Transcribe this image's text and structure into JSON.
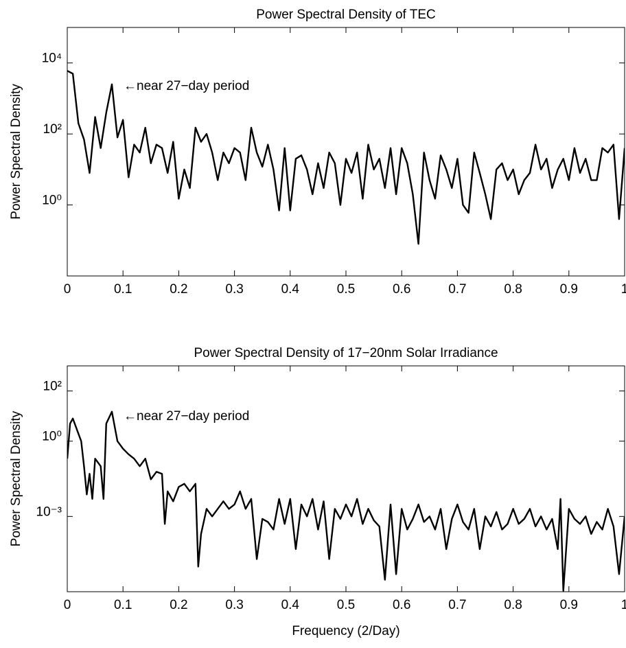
{
  "chart_data": [
    {
      "type": "line",
      "title": "Power Spectral Density of TEC",
      "y_label": "Power Spectral Density",
      "annotation": "←near 27−day period",
      "log_y": true,
      "color": "#000000",
      "xlim": [
        0,
        1
      ],
      "xticks": [
        0,
        0.1,
        0.2,
        0.3,
        0.4,
        0.5,
        0.6,
        0.7,
        0.8,
        0.9,
        1
      ],
      "ylim": [
        0.01,
        100000
      ],
      "yticks": [
        {
          "value": 1,
          "label": "10⁰"
        },
        {
          "value": 100,
          "label": "10²"
        },
        {
          "value": 10000,
          "label": "10⁴"
        }
      ],
      "x": [
        0,
        0.01,
        0.02,
        0.03,
        0.04,
        0.05,
        0.06,
        0.07,
        0.08,
        0.09,
        0.1,
        0.11,
        0.12,
        0.13,
        0.14,
        0.15,
        0.16,
        0.17,
        0.18,
        0.19,
        0.2,
        0.21,
        0.22,
        0.23,
        0.24,
        0.25,
        0.26,
        0.27,
        0.28,
        0.29,
        0.3,
        0.31,
        0.32,
        0.33,
        0.34,
        0.35,
        0.36,
        0.37,
        0.38,
        0.39,
        0.4,
        0.41,
        0.42,
        0.43,
        0.44,
        0.45,
        0.46,
        0.47,
        0.48,
        0.49,
        0.5,
        0.51,
        0.52,
        0.53,
        0.54,
        0.55,
        0.56,
        0.57,
        0.58,
        0.59,
        0.6,
        0.61,
        0.62,
        0.63,
        0.64,
        0.65,
        0.66,
        0.67,
        0.68,
        0.69,
        0.7,
        0.71,
        0.72,
        0.73,
        0.74,
        0.75,
        0.76,
        0.77,
        0.78,
        0.79,
        0.8,
        0.81,
        0.82,
        0.83,
        0.84,
        0.85,
        0.86,
        0.87,
        0.88,
        0.89,
        0.9,
        0.91,
        0.92,
        0.93,
        0.94,
        0.95,
        0.96,
        0.97,
        0.98,
        0.99,
        1
      ],
      "values": [
        6000,
        5000,
        200,
        70,
        8,
        300,
        40,
        400,
        2500,
        80,
        250,
        6,
        50,
        30,
        150,
        15,
        50,
        40,
        8,
        60,
        1.5,
        10,
        3,
        150,
        60,
        100,
        30,
        5,
        30,
        15,
        40,
        30,
        5,
        150,
        30,
        12,
        50,
        10,
        0.7,
        40,
        0.7,
        20,
        25,
        10,
        2,
        15,
        3,
        30,
        15,
        1,
        20,
        8,
        30,
        1.5,
        50,
        10,
        20,
        3,
        40,
        2,
        40,
        15,
        2,
        0.08,
        30,
        5,
        1.5,
        25,
        10,
        3,
        20,
        1,
        0.6,
        30,
        8,
        2,
        0.4,
        10,
        15,
        5,
        10,
        2,
        5,
        8,
        50,
        10,
        20,
        3,
        10,
        20,
        5,
        40,
        8,
        20,
        5,
        5,
        40,
        30,
        50,
        0.4,
        40
      ]
    },
    {
      "type": "line",
      "title": "Power Spectral Density of 17−20nm Solar Irradiance",
      "y_label": "Power Spectral Density",
      "x_label": "Frequency (2/Day)",
      "annotation": "←near 27−day period",
      "log_y": true,
      "color": "#000000",
      "xlim": [
        0,
        1
      ],
      "xticks": [
        0,
        0.1,
        0.2,
        0.3,
        0.4,
        0.5,
        0.6,
        0.7,
        0.8,
        0.9,
        1
      ],
      "ylim": [
        1e-06,
        1000
      ],
      "yticks": [
        {
          "value": 0.001,
          "label": "10⁻³"
        },
        {
          "value": 1,
          "label": "10⁰"
        },
        {
          "value": 100,
          "label": "10²"
        }
      ],
      "x": [
        0,
        0.005,
        0.01,
        0.02,
        0.025,
        0.03,
        0.035,
        0.04,
        0.045,
        0.05,
        0.06,
        0.065,
        0.07,
        0.08,
        0.09,
        0.1,
        0.11,
        0.12,
        0.13,
        0.14,
        0.15,
        0.16,
        0.17,
        0.175,
        0.18,
        0.19,
        0.2,
        0.21,
        0.22,
        0.23,
        0.235,
        0.24,
        0.25,
        0.26,
        0.27,
        0.28,
        0.29,
        0.3,
        0.31,
        0.32,
        0.33,
        0.34,
        0.35,
        0.36,
        0.37,
        0.38,
        0.39,
        0.4,
        0.41,
        0.42,
        0.43,
        0.44,
        0.45,
        0.46,
        0.47,
        0.48,
        0.49,
        0.5,
        0.51,
        0.52,
        0.53,
        0.54,
        0.55,
        0.56,
        0.57,
        0.58,
        0.59,
        0.6,
        0.61,
        0.62,
        0.63,
        0.64,
        0.65,
        0.66,
        0.67,
        0.68,
        0.69,
        0.7,
        0.71,
        0.72,
        0.73,
        0.74,
        0.75,
        0.76,
        0.77,
        0.78,
        0.79,
        0.8,
        0.81,
        0.82,
        0.83,
        0.84,
        0.85,
        0.86,
        0.87,
        0.88,
        0.885,
        0.89,
        0.9,
        0.91,
        0.92,
        0.93,
        0.94,
        0.95,
        0.96,
        0.97,
        0.98,
        0.99,
        1
      ],
      "values": [
        0.2,
        5,
        8,
        2,
        1,
        0.1,
        0.0075,
        0.05,
        0.005,
        0.2,
        0.1,
        0.005,
        5,
        15,
        1,
        0.5,
        0.3,
        0.2,
        0.1,
        0.2,
        0.03,
        0.06,
        0.05,
        0.0005,
        0.01,
        0.004,
        0.015,
        0.02,
        0.01,
        0.02,
        1e-05,
        0.0002,
        0.002,
        0.001,
        0.002,
        0.004,
        0.002,
        0.003,
        0.01,
        0.002,
        0.005,
        2e-05,
        0.0008,
        0.0006,
        0.0003,
        0.005,
        0.0005,
        0.005,
        5e-05,
        0.003,
        0.001,
        0.005,
        0.0003,
        0.004,
        2e-05,
        0.002,
        0.0008,
        0.003,
        0.001,
        0.005,
        0.0005,
        0.002,
        0.0007,
        0.0004,
        3e-06,
        0.003,
        5e-06,
        0.002,
        0.0003,
        0.0008,
        0.003,
        0.0006,
        0.001,
        0.0003,
        0.002,
        5e-05,
        0.0008,
        0.003,
        0.0006,
        0.0003,
        0.002,
        5e-05,
        0.001,
        0.0004,
        0.0015,
        0.0003,
        0.0005,
        0.002,
        0.0005,
        0.0008,
        0.002,
        0.0004,
        0.001,
        0.0003,
        0.0008,
        5e-05,
        0.005,
        1.1e-06,
        0.002,
        0.0008,
        0.0005,
        0.001,
        0.0002,
        0.0006,
        0.0003,
        0.002,
        0.0004,
        5e-06,
        0.001
      ]
    }
  ]
}
